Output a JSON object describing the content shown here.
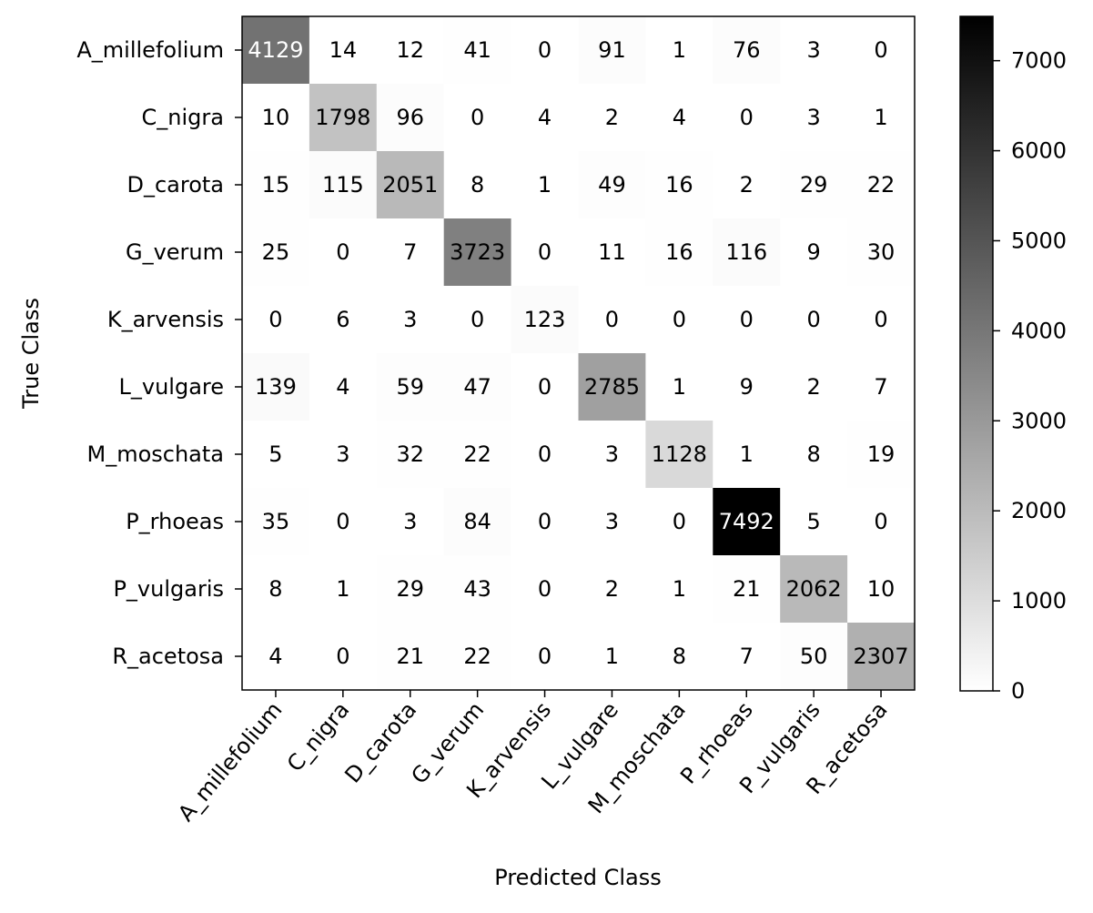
{
  "chart_data": {
    "type": "heatmap",
    "title": "",
    "xlabel": "Predicted Class",
    "ylabel": "True Class",
    "x_categories": [
      "A_millefolium",
      "C_nigra",
      "D_carota",
      "G_verum",
      "K_arvensis",
      "L_vulgare",
      "M_moschata",
      "P_rhoeas",
      "P_vulgaris",
      "R_acetosa"
    ],
    "y_categories": [
      "A_millefolium",
      "C_nigra",
      "D_carota",
      "G_verum",
      "K_arvensis",
      "L_vulgare",
      "M_moschata",
      "P_rhoeas",
      "P_vulgaris",
      "R_acetosa"
    ],
    "matrix": [
      [
        4129,
        14,
        12,
        41,
        0,
        91,
        1,
        76,
        3,
        0
      ],
      [
        10,
        1798,
        96,
        0,
        4,
        2,
        4,
        0,
        3,
        1
      ],
      [
        15,
        115,
        2051,
        8,
        1,
        49,
        16,
        2,
        29,
        22
      ],
      [
        25,
        0,
        7,
        3723,
        0,
        11,
        16,
        116,
        9,
        30
      ],
      [
        0,
        6,
        3,
        0,
        123,
        0,
        0,
        0,
        0,
        0
      ],
      [
        139,
        4,
        59,
        47,
        0,
        2785,
        1,
        9,
        2,
        7
      ],
      [
        5,
        3,
        32,
        22,
        0,
        3,
        1128,
        1,
        8,
        19
      ],
      [
        35,
        0,
        3,
        84,
        0,
        3,
        0,
        7492,
        5,
        0
      ],
      [
        8,
        1,
        29,
        43,
        0,
        2,
        1,
        21,
        2062,
        10
      ],
      [
        4,
        0,
        21,
        22,
        0,
        1,
        8,
        7,
        50,
        2307
      ]
    ],
    "colormap": "Greys",
    "colorbar": {
      "min": 0,
      "max": 7492,
      "ticks": [
        0,
        1000,
        2000,
        3000,
        4000,
        5000,
        6000,
        7000
      ]
    },
    "grid": false,
    "legend": "colorbar-right"
  }
}
